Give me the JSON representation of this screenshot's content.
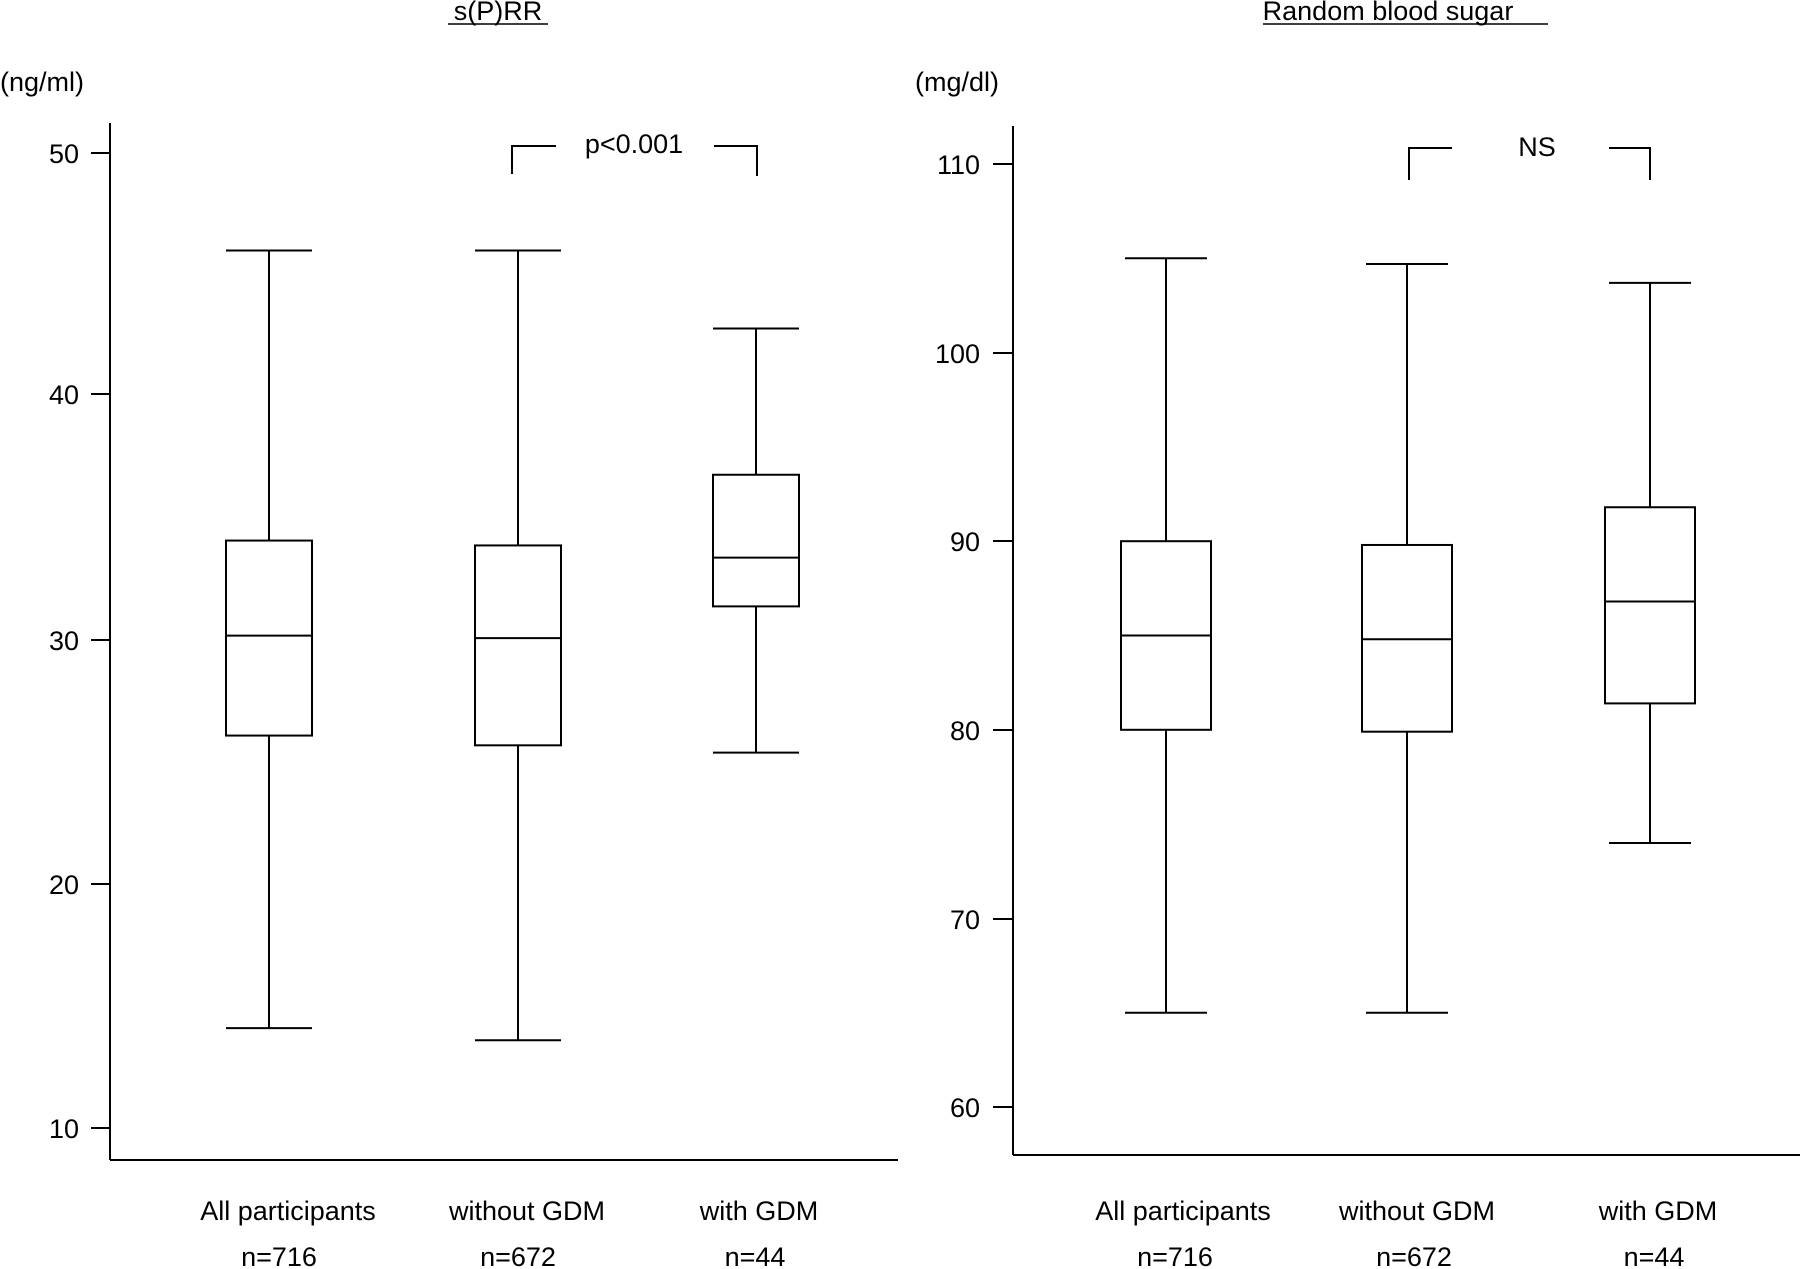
{
  "chart_data": [
    {
      "type": "box",
      "title": "s(P)RR",
      "unit": "(ng/ml)",
      "ylim": [
        10,
        50
      ],
      "yticks": [
        10,
        20,
        30,
        40,
        50
      ],
      "categories": [
        "All participants",
        "without GDM",
        "with GDM"
      ],
      "n_labels": [
        "n=716",
        "n=672",
        "n=44"
      ],
      "boxes": [
        {
          "min": 14.1,
          "q1": 26.1,
          "median": 30.2,
          "q3": 34.1,
          "max": 46.0
        },
        {
          "min": 13.6,
          "q1": 25.7,
          "median": 30.1,
          "q3": 33.9,
          "max": 46.0
        },
        {
          "min": 25.4,
          "q1": 31.4,
          "median": 33.4,
          "q3": 36.8,
          "max": 42.8
        }
      ],
      "comparison": {
        "from": 1,
        "to": 2,
        "label": "p<0.001",
        "level": 51.5
      }
    },
    {
      "type": "box",
      "title": "Random blood sugar",
      "unit": "(mg/dl)",
      "ylim": [
        60,
        110
      ],
      "yticks": [
        60,
        70,
        80,
        90,
        100,
        110
      ],
      "categories": [
        "All participants",
        "without GDM",
        "with GDM"
      ],
      "n_labels": [
        "n=716",
        "n=672",
        "n=44"
      ],
      "boxes": [
        {
          "min": 65.0,
          "q1": 80.0,
          "median": 85.0,
          "q3": 90.0,
          "max": 105.0
        },
        {
          "min": 65.0,
          "q1": 79.9,
          "median": 84.8,
          "q3": 89.8,
          "max": 104.7
        },
        {
          "min": 74.0,
          "q1": 81.4,
          "median": 86.8,
          "q3": 91.8,
          "max": 103.7
        }
      ],
      "comparison": {
        "from": 1,
        "to": 2,
        "label": "NS",
        "level": 110.9
      }
    }
  ]
}
